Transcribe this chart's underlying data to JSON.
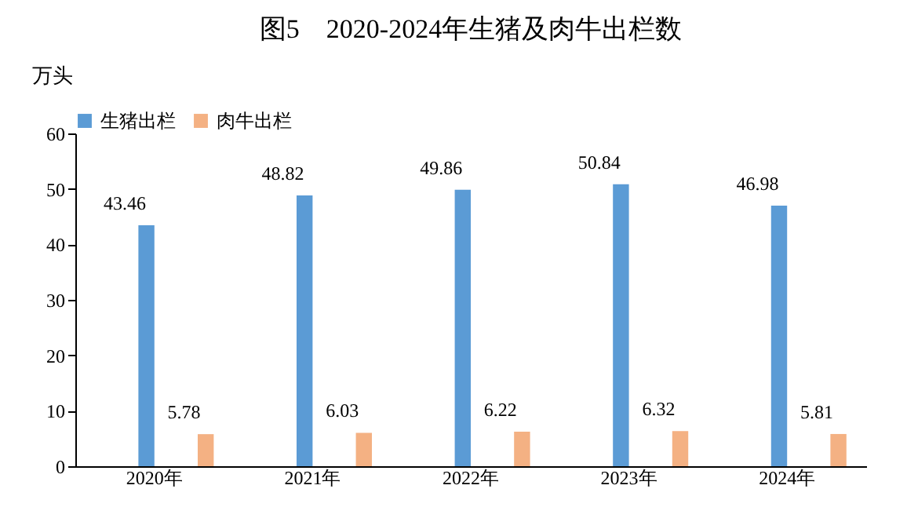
{
  "chart_data": {
    "type": "bar",
    "title": "图5　2020-2024年生猪及肉牛出栏数",
    "ylabel": "万头",
    "categories": [
      "2020年",
      "2021年",
      "2022年",
      "2023年",
      "2024年"
    ],
    "series": [
      {
        "name": "生猪出栏",
        "color": "#5b9bd5",
        "values": [
          43.46,
          48.82,
          49.86,
          50.84,
          46.98
        ]
      },
      {
        "name": "肉牛出栏",
        "color": "#f4b183",
        "values": [
          5.78,
          6.03,
          6.22,
          6.32,
          5.81
        ]
      }
    ],
    "ylim": [
      0,
      60
    ],
    "yticks": [
      0,
      10,
      20,
      30,
      40,
      50,
      60
    ],
    "data_labels": true,
    "legend": "top",
    "grid": false
  }
}
